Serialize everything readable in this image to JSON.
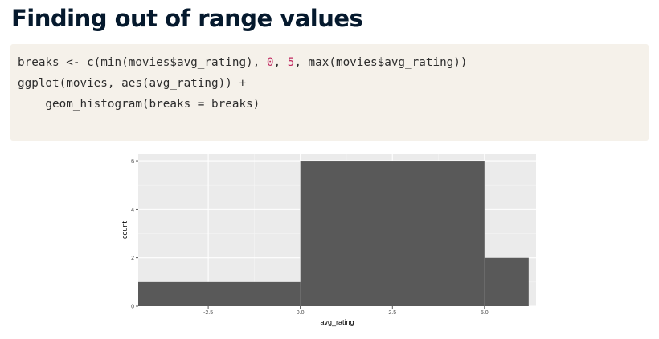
{
  "slide": {
    "title": "Finding out of range values"
  },
  "code": {
    "line1_a": "breaks <- c(min(movies$avg_rating), ",
    "line1_n1": "0",
    "line1_b": ", ",
    "line1_n2": "5",
    "line1_c": ", max(movies$avg_rating))",
    "line2": "ggplot(movies, aes(avg_rating)) +",
    "line3": "    geom_histogram(breaks = breaks)"
  },
  "colors": {
    "code_background": "#f5f1ea",
    "number_literal": "#c0285f",
    "panel_background": "#ebebeb",
    "bar_fill": "#595959",
    "title_text": "#05192d"
  },
  "chart_data": {
    "type": "histogram",
    "xlabel": "avg_rating",
    "ylabel": "count",
    "xlim": [
      -4.4,
      6.4
    ],
    "ylim": [
      0,
      6.3
    ],
    "x_ticks": [
      -2.5,
      0.0,
      2.5,
      5.0
    ],
    "x_tick_labels": [
      "-2.5",
      "0.0",
      "2.5",
      "5.0"
    ],
    "y_ticks": [
      0,
      2,
      4,
      6
    ],
    "y_tick_labels": [
      "0",
      "2",
      "4",
      "6"
    ],
    "bins": [
      {
        "start": -4.4,
        "end": 0.0,
        "count": 1
      },
      {
        "start": 0.0,
        "end": 5.0,
        "count": 6
      },
      {
        "start": 5.0,
        "end": 6.2,
        "count": 2
      }
    ],
    "grid": true
  }
}
